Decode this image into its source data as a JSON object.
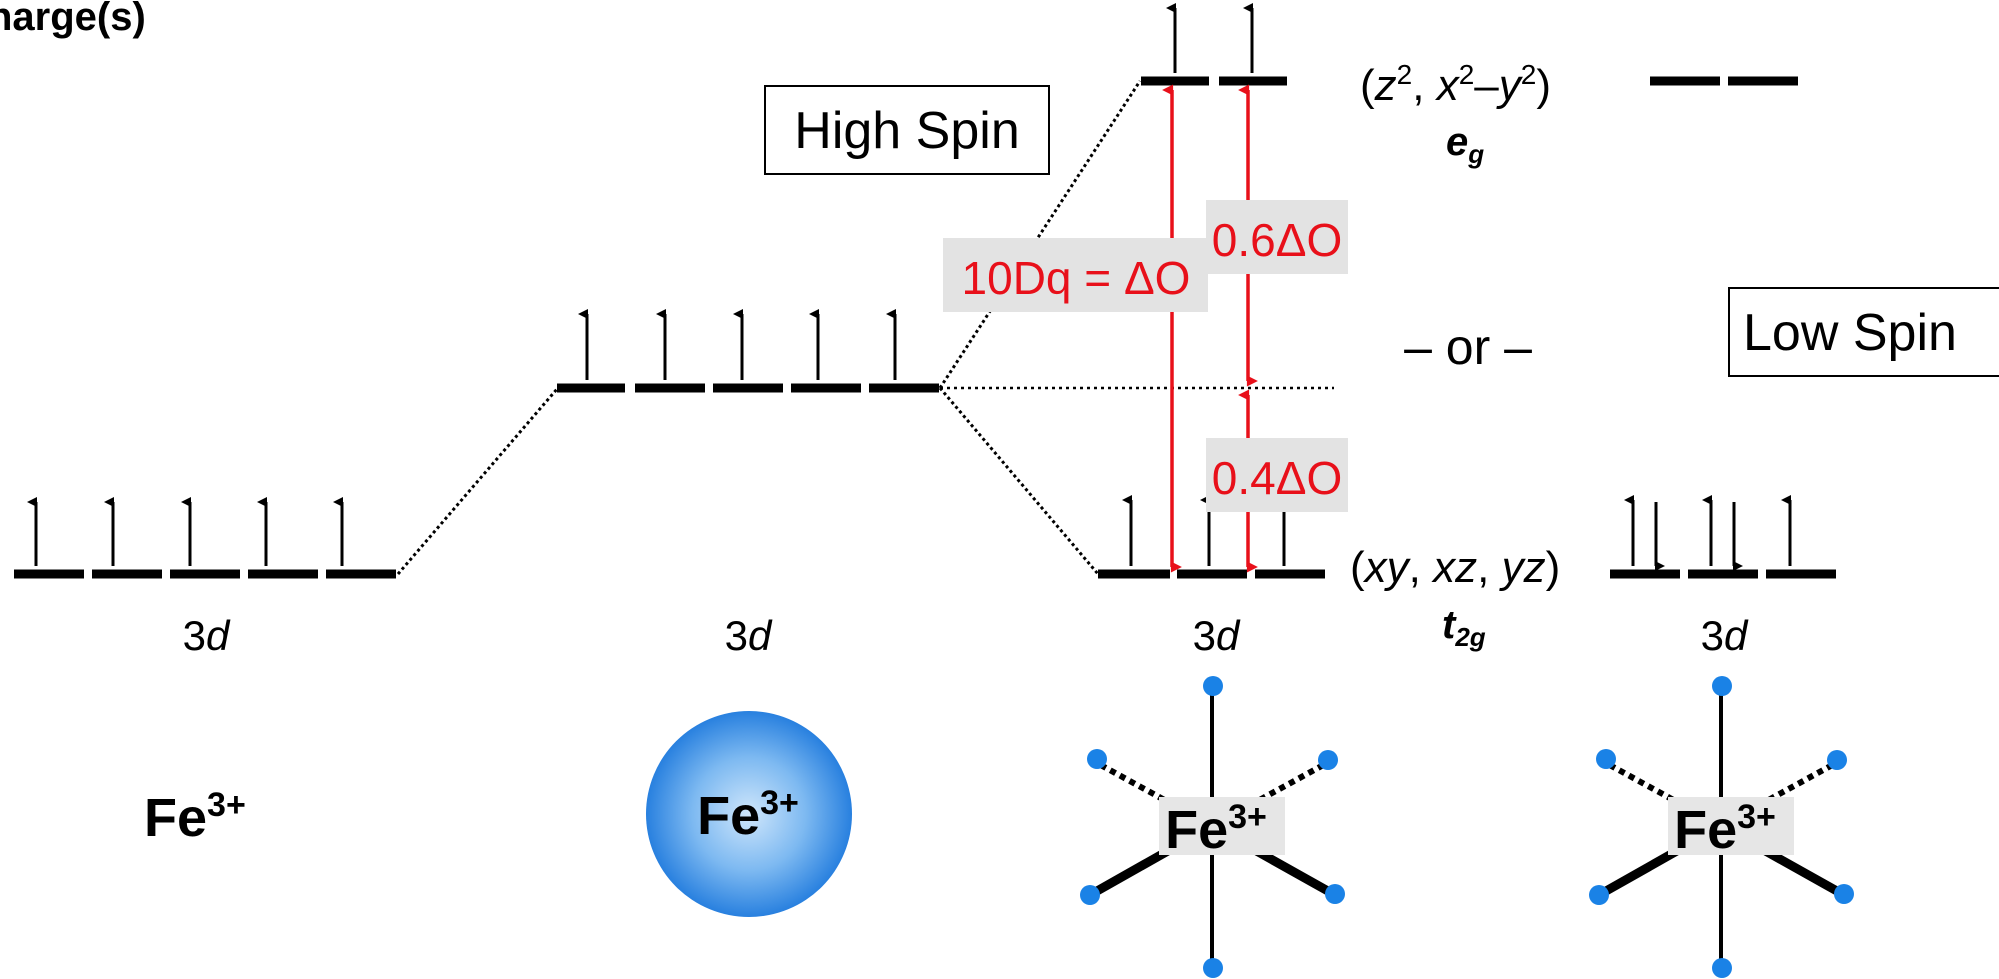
{
  "header": {
    "title": "harge(s)"
  },
  "labels": {
    "high_spin": "High Spin",
    "low_spin": "Low Spin",
    "or_separator": "– or –",
    "level_3d": "3",
    "level_3d_italic": "d",
    "eg_orbitals": "(z², x²–y²)",
    "eg_symbol_e": "e",
    "eg_symbol_sub": "g",
    "t2g_orbitals": "(xy, xz, yz)",
    "t2g_symbol_t": "t",
    "t2g_symbol_sub": "2g",
    "delta_10dq": "10Dq = ΔO",
    "delta_06": "0.6ΔO",
    "delta_04": "0.4ΔO",
    "ion_free": "Fe",
    "ion_sphere": "Fe",
    "ion_octa_high": "Fe",
    "ion_octa_low": "Fe",
    "ion_charge": "3+"
  },
  "colors": {
    "level": "#000000",
    "transition_arrow": "#e8101a",
    "delta_label_bg": "#e3e3e3",
    "ligand": "#1a82e6",
    "sphere_center": "#cfe6fb",
    "sphere_edge": "#2880df"
  },
  "configurations": {
    "free_ion": {
      "electrons": [
        "up",
        "up",
        "up",
        "up",
        "up"
      ]
    },
    "spherical_field": {
      "electrons": [
        "up",
        "up",
        "up",
        "up",
        "up"
      ]
    },
    "high_spin_t2g": {
      "electrons": [
        "up",
        "up",
        "up"
      ]
    },
    "high_spin_eg": {
      "electrons": [
        "up",
        "up"
      ]
    },
    "low_spin_t2g": {
      "electrons": [
        "updown",
        "updown",
        "up"
      ]
    },
    "low_spin_eg": {
      "electrons": [
        "empty",
        "empty"
      ]
    }
  },
  "splitting": {
    "eg_fraction": 0.6,
    "t2g_fraction": 0.4
  }
}
